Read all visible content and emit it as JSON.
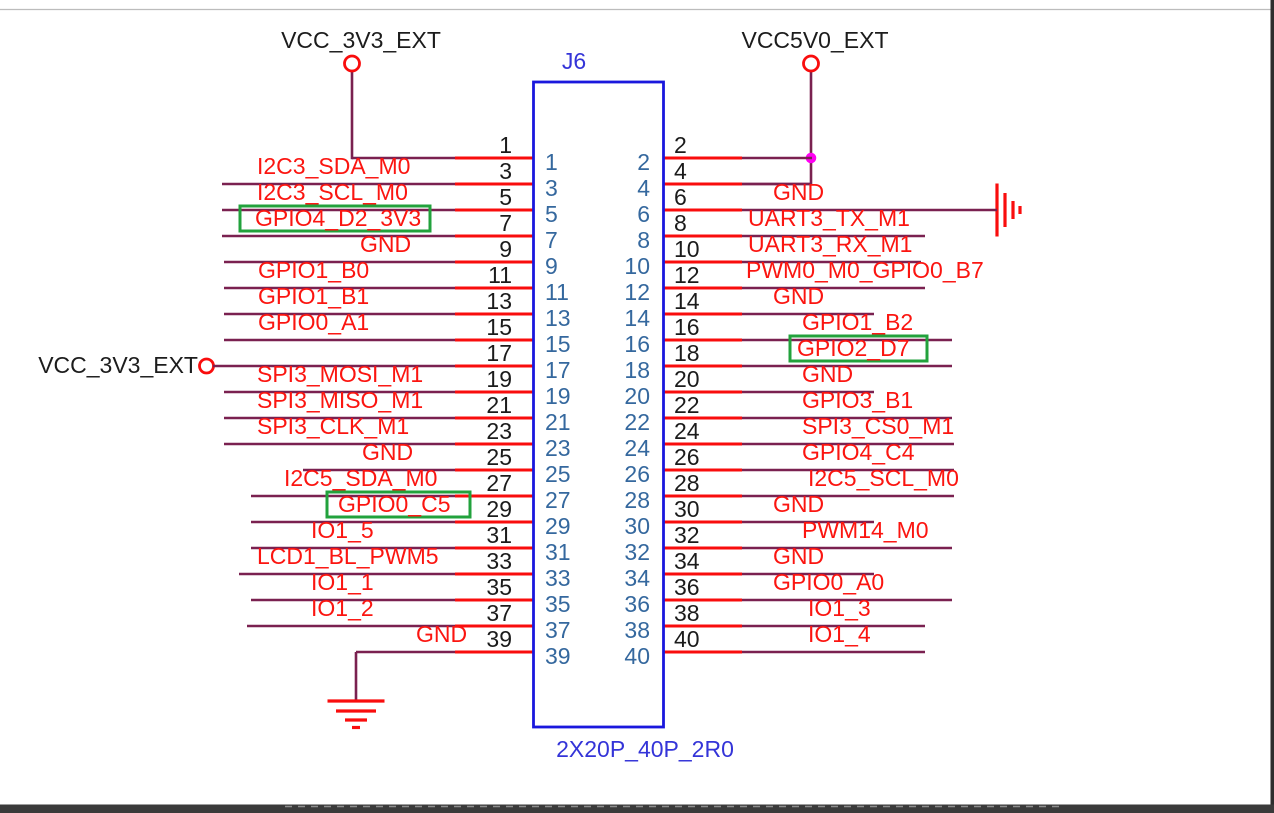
{
  "connector": {
    "refdes": "J6",
    "part_number": "2X20P_40P_2R0",
    "pins": [
      {
        "pin": 1,
        "net": ""
      },
      {
        "pin": 2,
        "net": ""
      },
      {
        "pin": 3,
        "net": "I2C3_SDA_M0"
      },
      {
        "pin": 4,
        "net": ""
      },
      {
        "pin": 5,
        "net": "I2C3_SCL_M0"
      },
      {
        "pin": 6,
        "net": "GND"
      },
      {
        "pin": 7,
        "net": "GPIO4_D2_3V3",
        "highlighted": true
      },
      {
        "pin": 8,
        "net": "UART3_TX_M1"
      },
      {
        "pin": 9,
        "net": "GND"
      },
      {
        "pin": 10,
        "net": "UART3_RX_M1"
      },
      {
        "pin": 11,
        "net": "GPIO1_B0"
      },
      {
        "pin": 12,
        "net": "PWM0_M0_GPIO0_B7"
      },
      {
        "pin": 13,
        "net": "GPIO1_B1"
      },
      {
        "pin": 14,
        "net": "GND"
      },
      {
        "pin": 15,
        "net": "GPIO0_A1"
      },
      {
        "pin": 16,
        "net": "GPIO1_B2"
      },
      {
        "pin": 17,
        "net": ""
      },
      {
        "pin": 18,
        "net": "GPIO2_D7",
        "highlighted": true
      },
      {
        "pin": 19,
        "net": "SPI3_MOSI_M1"
      },
      {
        "pin": 20,
        "net": "GND"
      },
      {
        "pin": 21,
        "net": "SPI3_MISO_M1"
      },
      {
        "pin": 22,
        "net": "GPIO3_B1"
      },
      {
        "pin": 23,
        "net": "SPI3_CLK_M1"
      },
      {
        "pin": 24,
        "net": "SPI3_CS0_M1"
      },
      {
        "pin": 25,
        "net": "GND"
      },
      {
        "pin": 26,
        "net": "GPIO4_C4"
      },
      {
        "pin": 27,
        "net": "I2C5_SDA_M0"
      },
      {
        "pin": 28,
        "net": "I2C5_SCL_M0"
      },
      {
        "pin": 29,
        "net": "GPIO0_C5",
        "highlighted": true
      },
      {
        "pin": 30,
        "net": "GND"
      },
      {
        "pin": 31,
        "net": "IO1_5"
      },
      {
        "pin": 32,
        "net": "PWM14_M0"
      },
      {
        "pin": 33,
        "net": "LCD1_BL_PWM5"
      },
      {
        "pin": 34,
        "net": "GND"
      },
      {
        "pin": 35,
        "net": "IO1_1"
      },
      {
        "pin": 36,
        "net": "GPIO0_A0"
      },
      {
        "pin": 37,
        "net": "IO1_2"
      },
      {
        "pin": 38,
        "net": "IO1_3"
      },
      {
        "pin": 39,
        "net": "GND"
      },
      {
        "pin": 40,
        "net": "IO1_4"
      }
    ]
  },
  "power_flags": {
    "vcc3v3_top": {
      "label": "VCC_3V3_EXT"
    },
    "vcc5v0_top": {
      "label": "VCC5V0_EXT"
    },
    "vcc3v3_pin17": {
      "label": "VCC_3V3_EXT"
    }
  },
  "colors": {
    "wire": "#7a2150",
    "pin_stub": "#f90d0d",
    "net_label": "#fb1510",
    "pin_number_outside": "#1b1b1b",
    "pin_number_inside": "#35689e",
    "connector_outline": "#1a17dd",
    "connector_text": "#3434d8",
    "highlight_box": "#22a23c",
    "junction": "#ff00f2",
    "power_symbol": "#f90d0d",
    "power_text": "#1c1c1c",
    "ground_symbol": "#f90d0d",
    "sheet_edge": "#343434"
  }
}
